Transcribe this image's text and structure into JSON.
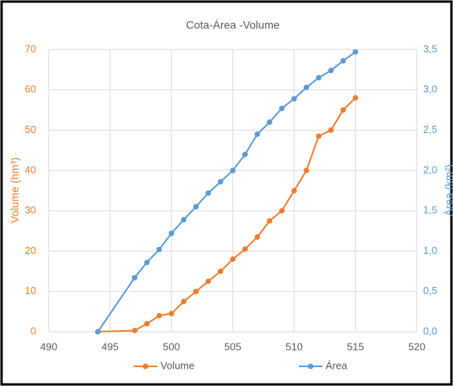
{
  "chart_data": {
    "type": "line",
    "title": "Cota-Área -Volume",
    "y_label": "Volume (hm³)",
    "y2_label": "Área (km²)",
    "x": [
      494,
      497,
      498,
      499,
      500,
      501,
      502,
      503,
      504,
      505,
      506,
      507,
      508,
      509,
      510,
      511,
      512,
      513,
      514,
      515
    ],
    "series": [
      {
        "name": "Volume",
        "color": "#ED7D31",
        "values": [
          0,
          0.3,
          2,
          4,
          4.5,
          7.5,
          10,
          12.5,
          15,
          18,
          20.5,
          23.5,
          27.5,
          30,
          35,
          40,
          48.5,
          50,
          55,
          58
        ]
      },
      {
        "name": "Área",
        "color": "#5B9BD5",
        "axis": "y2",
        "values": [
          0,
          0.67,
          0.86,
          1.02,
          1.22,
          1.39,
          1.55,
          1.72,
          1.86,
          2.0,
          2.2,
          2.45,
          2.6,
          2.77,
          2.89,
          3.03,
          3.15,
          3.24,
          3.36,
          3.47
        ]
      }
    ],
    "xlim": [
      490,
      520
    ],
    "xticks": [
      490,
      495,
      500,
      505,
      510,
      515,
      520
    ],
    "ylim": [
      0,
      70
    ],
    "yticks": [
      0,
      10,
      20,
      30,
      40,
      50,
      60,
      70
    ],
    "y2lim": [
      0,
      3.5
    ],
    "y2ticks": [
      {
        "value": 0,
        "label": "0,0"
      },
      {
        "value": 0.5,
        "label": "0,5"
      },
      {
        "value": 1,
        "label": "1,0"
      },
      {
        "value": 1.5,
        "label": "1,5"
      },
      {
        "value": 2,
        "label": "2,0"
      },
      {
        "value": 2.5,
        "label": "2,5"
      },
      {
        "value": 3,
        "label": "3,0"
      },
      {
        "value": 3.5,
        "label": "3,5"
      }
    ],
    "grid": true,
    "legend": "bottom"
  }
}
